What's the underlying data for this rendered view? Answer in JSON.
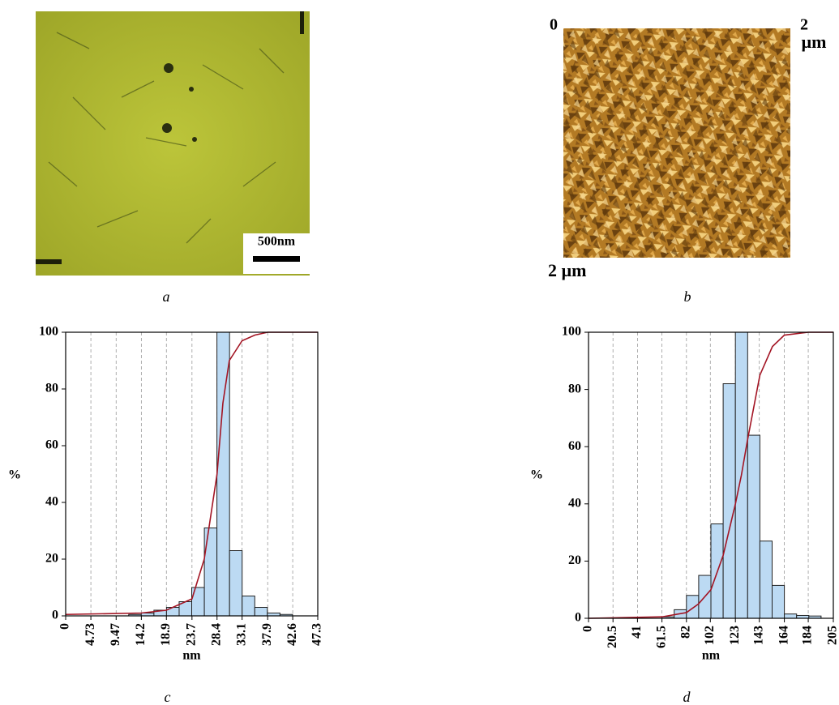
{
  "images": [
    {
      "caption": "a",
      "scale_bar": "500nm"
    },
    {
      "caption": "b",
      "origin": "0",
      "width": "2",
      "width_unit": "µm",
      "height": "2 µm"
    }
  ],
  "chart_data": [
    {
      "type": "histogram",
      "caption": "c",
      "ylabel": "%",
      "xlabel": "nm",
      "bins": [
        11.83,
        14.19,
        16.56,
        18.92,
        21.29,
        23.65,
        26.02,
        28.38,
        30.75,
        33.11,
        35.48,
        37.84,
        40.21,
        42.57
      ],
      "values": [
        0.5,
        1,
        2,
        3,
        5,
        10,
        31,
        100,
        23,
        7,
        3,
        1,
        0.5
      ],
      "color": "#bcdaf3",
      "line": {
        "x": [
          0,
          14.2,
          18.9,
          23.7,
          26,
          28.4,
          29.5,
          30.7,
          33.1,
          35.5,
          37.9,
          47.3
        ],
        "values": [
          0.5,
          1,
          2,
          6,
          20,
          50,
          75,
          90,
          97,
          99,
          100,
          100
        ],
        "color": "#a31524"
      },
      "xlim": [
        0,
        47.3
      ],
      "ylim": [
        0,
        100
      ],
      "xticks": [
        0,
        4.73,
        9.47,
        14.2,
        18.9,
        23.7,
        28.4,
        33.1,
        37.9,
        42.6,
        47.3
      ],
      "yticks": [
        0,
        20,
        40,
        60,
        80,
        100
      ],
      "grid": true
    },
    {
      "type": "histogram",
      "caption": "d",
      "ylabel": "%",
      "xlabel": "nm",
      "bins": [
        61.5,
        71.75,
        82,
        92.25,
        102.5,
        112.75,
        123,
        133.25,
        143.5,
        153.75,
        164,
        174.25,
        184.5,
        194.75
      ],
      "values": [
        0.5,
        3,
        8,
        15,
        33,
        82,
        100,
        64,
        27,
        11.5,
        1.5,
        1,
        0.8
      ],
      "color": "#bcdaf3",
      "line": {
        "x": [
          0,
          61.5,
          82,
          92,
          102.5,
          112.75,
          123,
          128,
          133,
          143.5,
          154,
          164,
          184,
          205
        ],
        "values": [
          0,
          0.5,
          2,
          5,
          10,
          22,
          40,
          50,
          62,
          85,
          95,
          99,
          100,
          100
        ],
        "color": "#a31524"
      },
      "xlim": [
        0,
        205
      ],
      "ylim": [
        0,
        100
      ],
      "xticks": [
        0,
        20.5,
        41,
        61.5,
        82,
        102,
        123,
        143,
        164,
        184,
        205
      ],
      "yticks": [
        0,
        20,
        40,
        60,
        80,
        100
      ],
      "grid": true
    }
  ]
}
